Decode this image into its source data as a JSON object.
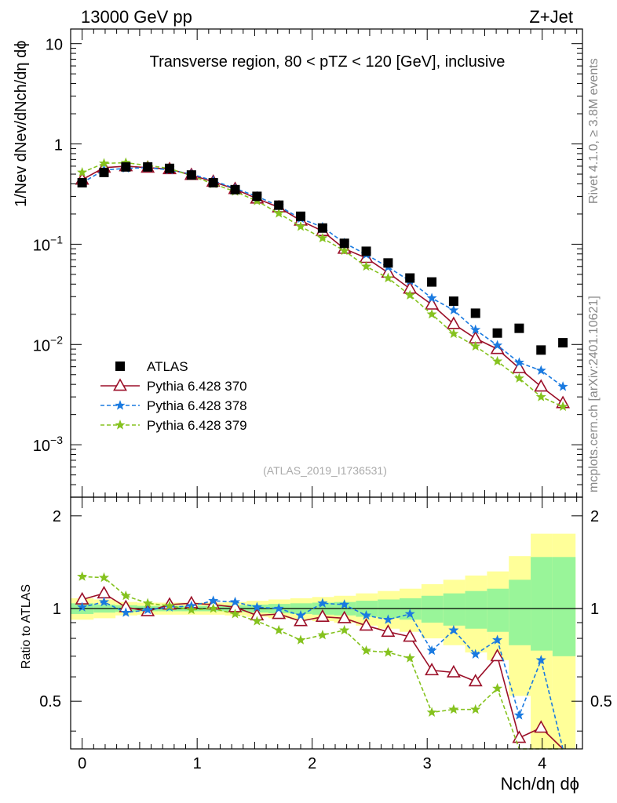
{
  "header": {
    "energy": "13000 GeV pp",
    "process": "Z+Jet",
    "rivet_side": "Rivet 4.1.0, ≥ 3.8M events",
    "mcplots_side": "mcplots.cern.ch [arXiv:2401.10621]"
  },
  "chart_data": [
    {
      "type": "scatter",
      "panel": "main",
      "title": "Transverse region, 80 < pTZ < 120 [GeV], inclusive",
      "ylabel": "1/Nev dNev/dNch/dη dϕ",
      "xlabel": "",
      "yscale": "log",
      "ylim": [
        0.0003,
        14
      ],
      "xlim": [
        -0.1,
        4.35
      ],
      "analysis_label": "(ATLAS_2019_I1736531)",
      "y_ticks": [
        {
          "value": 0.001,
          "base": "10",
          "exp": "−3"
        },
        {
          "value": 0.01,
          "base": "10",
          "exp": "−2"
        },
        {
          "value": 0.1,
          "base": "10",
          "exp": "−1"
        },
        {
          "value": 1,
          "base": "1",
          "exp": ""
        },
        {
          "value": 10,
          "base": "10",
          "exp": ""
        }
      ],
      "x": [
        0.0,
        0.19,
        0.38,
        0.57,
        0.76,
        0.95,
        1.14,
        1.33,
        1.52,
        1.71,
        1.9,
        2.09,
        2.28,
        2.47,
        2.66,
        2.85,
        3.04,
        3.23,
        3.42,
        3.61,
        3.8,
        3.99,
        4.18
      ],
      "series": [
        {
          "name": "ATLAS",
          "style": "data",
          "color": "#000000",
          "values": [
            0.41,
            0.52,
            0.59,
            0.59,
            0.57,
            0.49,
            0.41,
            0.35,
            0.3,
            0.245,
            0.19,
            0.145,
            0.102,
            0.085,
            0.065,
            0.046,
            0.042,
            0.027,
            0.0205,
            0.013,
            0.0145,
            0.0088,
            0.0104
          ]
        },
        {
          "name": "Pythia 6.428 370",
          "style": "solid",
          "marker": "triangle",
          "color": "#9b0f28",
          "values": [
            0.44,
            0.58,
            0.6,
            0.58,
            0.56,
            0.49,
            0.42,
            0.355,
            0.285,
            0.233,
            0.172,
            0.135,
            0.09,
            0.073,
            0.052,
            0.036,
            0.025,
            0.016,
            0.0115,
            0.009,
            0.0058,
            0.0038,
            0.0026
          ]
        },
        {
          "name": "Pythia 6.428 378",
          "style": "dashed",
          "marker": "star",
          "color": "#1a7ae0",
          "values": [
            0.41,
            0.55,
            0.57,
            0.58,
            0.55,
            0.5,
            0.43,
            0.36,
            0.3,
            0.24,
            0.18,
            0.148,
            0.103,
            0.079,
            0.059,
            0.043,
            0.029,
            0.022,
            0.014,
            0.0098,
            0.0066,
            0.0055,
            0.0038
          ]
        },
        {
          "name": "Pythia 6.428 379",
          "style": "dashed",
          "marker": "star",
          "color": "#85c21e",
          "values": [
            0.52,
            0.64,
            0.65,
            0.61,
            0.57,
            0.48,
            0.4,
            0.335,
            0.27,
            0.203,
            0.15,
            0.115,
            0.086,
            0.06,
            0.046,
            0.031,
            0.02,
            0.0128,
            0.0096,
            0.0068,
            0.0046,
            0.003,
            0.0024
          ]
        }
      ],
      "legend": [
        {
          "label": "ATLAS",
          "series": 0
        },
        {
          "label": "Pythia 6.428 370",
          "series": 1
        },
        {
          "label": "Pythia 6.428 378",
          "series": 2
        },
        {
          "label": "Pythia 6.428 379",
          "series": 3
        }
      ]
    },
    {
      "type": "line",
      "panel": "ratio",
      "ylabel": "Ratio to ATLAS",
      "xlabel": "Nch/dη dϕ",
      "ylim": [
        0.35,
        2.3
      ],
      "xlim": [
        -0.1,
        4.35
      ],
      "y_ticks": [
        0.5,
        1,
        2
      ],
      "x_ticks": [
        0,
        1,
        2,
        3,
        4
      ],
      "reference_line": 1.0,
      "x": [
        0.0,
        0.19,
        0.38,
        0.57,
        0.76,
        0.95,
        1.14,
        1.33,
        1.52,
        1.71,
        1.9,
        2.09,
        2.28,
        2.47,
        2.66,
        2.85,
        3.04,
        3.23,
        3.42,
        3.61,
        3.8,
        3.99,
        4.18
      ],
      "bands": {
        "inner_color": "#99f599",
        "outer_color": "#ffff99",
        "bins": [
          {
            "x0": -0.1,
            "x1": 0.1,
            "inner": [
              0.96,
              1.04
            ],
            "outer": [
              0.92,
              1.08
            ]
          },
          {
            "x0": 0.1,
            "x1": 0.29,
            "inner": [
              0.97,
              1.03
            ],
            "outer": [
              0.93,
              1.07
            ]
          },
          {
            "x0": 0.29,
            "x1": 0.48,
            "inner": [
              0.975,
              1.025
            ],
            "outer": [
              0.95,
              1.05
            ]
          },
          {
            "x0": 0.48,
            "x1": 0.67,
            "inner": [
              0.98,
              1.02
            ],
            "outer": [
              0.955,
              1.045
            ]
          },
          {
            "x0": 0.67,
            "x1": 0.86,
            "inner": [
              0.98,
              1.02
            ],
            "outer": [
              0.955,
              1.045
            ]
          },
          {
            "x0": 0.86,
            "x1": 1.05,
            "inner": [
              0.98,
              1.02
            ],
            "outer": [
              0.955,
              1.045
            ]
          },
          {
            "x0": 1.05,
            "x1": 1.24,
            "inner": [
              0.98,
              1.02
            ],
            "outer": [
              0.955,
              1.045
            ]
          },
          {
            "x0": 1.24,
            "x1": 1.43,
            "inner": [
              0.975,
              1.025
            ],
            "outer": [
              0.95,
              1.05
            ]
          },
          {
            "x0": 1.43,
            "x1": 1.62,
            "inner": [
              0.97,
              1.03
            ],
            "outer": [
              0.94,
              1.06
            ]
          },
          {
            "x0": 1.62,
            "x1": 1.81,
            "inner": [
              0.965,
              1.035
            ],
            "outer": [
              0.93,
              1.07
            ]
          },
          {
            "x0": 1.81,
            "x1": 2.0,
            "inner": [
              0.96,
              1.04
            ],
            "outer": [
              0.92,
              1.08
            ]
          },
          {
            "x0": 2.0,
            "x1": 2.19,
            "inner": [
              0.955,
              1.045
            ],
            "outer": [
              0.91,
              1.09
            ]
          },
          {
            "x0": 2.19,
            "x1": 2.38,
            "inner": [
              0.95,
              1.05
            ],
            "outer": [
              0.9,
              1.1
            ]
          },
          {
            "x0": 2.38,
            "x1": 2.57,
            "inner": [
              0.94,
              1.06
            ],
            "outer": [
              0.88,
              1.12
            ]
          },
          {
            "x0": 2.57,
            "x1": 2.76,
            "inner": [
              0.93,
              1.07
            ],
            "outer": [
              0.86,
              1.14
            ]
          },
          {
            "x0": 2.76,
            "x1": 2.95,
            "inner": [
              0.92,
              1.08
            ],
            "outer": [
              0.84,
              1.16
            ]
          },
          {
            "x0": 2.95,
            "x1": 3.14,
            "inner": [
              0.9,
              1.1
            ],
            "outer": [
              0.8,
              1.2
            ]
          },
          {
            "x0": 3.14,
            "x1": 3.33,
            "inner": [
              0.88,
              1.12
            ],
            "outer": [
              0.76,
              1.24
            ]
          },
          {
            "x0": 3.33,
            "x1": 3.52,
            "inner": [
              0.86,
              1.14
            ],
            "outer": [
              0.72,
              1.28
            ]
          },
          {
            "x0": 3.52,
            "x1": 3.71,
            "inner": [
              0.84,
              1.16
            ],
            "outer": [
              0.68,
              1.32
            ]
          },
          {
            "x0": 3.71,
            "x1": 3.9,
            "inner": [
              0.76,
              1.24
            ],
            "outer": [
              0.52,
              1.48
            ]
          },
          {
            "x0": 3.9,
            "x1": 4.09,
            "inner": [
              0.73,
              1.47
            ],
            "outer": [
              0.35,
              1.75
            ]
          },
          {
            "x0": 4.09,
            "x1": 4.29,
            "inner": [
              0.7,
              1.47
            ],
            "outer": [
              0.35,
              1.75
            ]
          }
        ]
      },
      "series": [
        {
          "name": "Pythia 6.428 370",
          "style": "solid",
          "marker": "triangle",
          "color": "#9b0f28",
          "values": [
            1.07,
            1.12,
            1.01,
            0.98,
            1.03,
            1.04,
            1.03,
            1.01,
            0.95,
            0.96,
            0.91,
            0.94,
            0.93,
            0.88,
            0.84,
            0.81,
            0.63,
            0.62,
            0.58,
            0.7,
            0.38,
            0.41,
            0.25
          ]
        },
        {
          "name": "Pythia 6.428 378",
          "style": "dashed",
          "marker": "star",
          "color": "#1a7ae0",
          "values": [
            1.01,
            1.05,
            0.97,
            0.99,
            1.01,
            1.02,
            1.06,
            1.05,
            1.01,
            1.0,
            0.95,
            1.04,
            1.03,
            0.95,
            0.92,
            0.96,
            0.73,
            0.85,
            0.71,
            0.79,
            0.45,
            0.68,
            0.3
          ]
        },
        {
          "name": "Pythia 6.428 379",
          "style": "dashed",
          "marker": "star",
          "color": "#85c21e",
          "values": [
            1.27,
            1.26,
            1.1,
            1.04,
            1.02,
            0.99,
            1.0,
            0.96,
            0.91,
            0.85,
            0.79,
            0.82,
            0.85,
            0.73,
            0.72,
            0.69,
            0.46,
            0.47,
            0.47,
            0.55,
            0.32,
            0.33,
            0.23
          ]
        }
      ]
    }
  ]
}
